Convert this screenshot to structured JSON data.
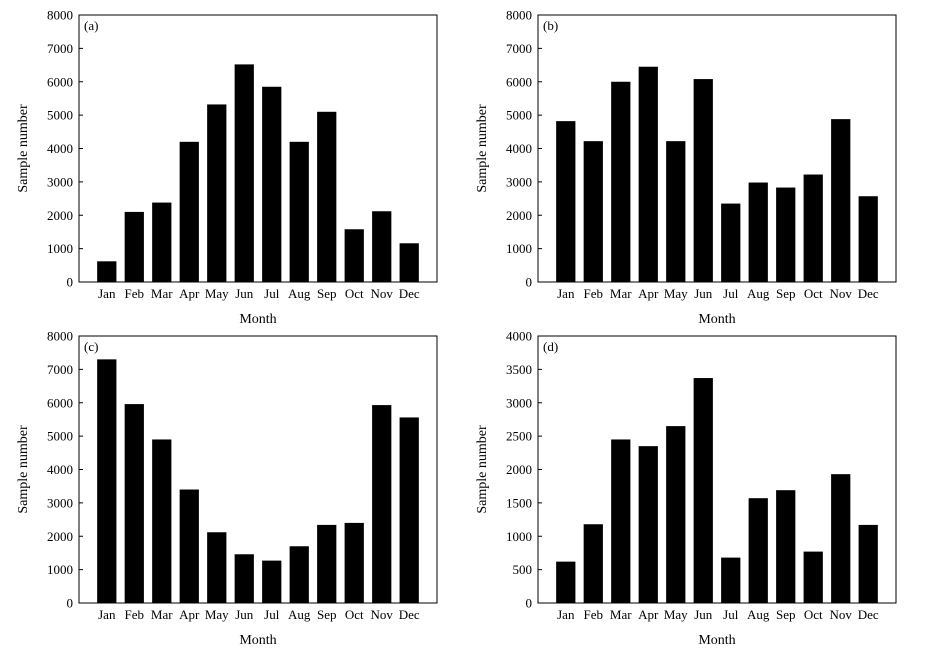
{
  "chart_data": [
    {
      "type": "bar",
      "panel_label": "(a)",
      "xlabel": "Month",
      "ylabel": "Sample number",
      "ylim": [
        0,
        8000
      ],
      "yticks": [
        0,
        1000,
        2000,
        3000,
        4000,
        5000,
        6000,
        7000,
        8000
      ],
      "categories": [
        "Jan",
        "Feb",
        "Mar",
        "Apr",
        "May",
        "Jun",
        "Jul",
        "Aug",
        "Sep",
        "Oct",
        "Nov",
        "Dec"
      ],
      "values": [
        620,
        2100,
        2380,
        4200,
        5320,
        6520,
        5850,
        4200,
        5100,
        1580,
        2120,
        1160
      ],
      "bar_color": "#000000"
    },
    {
      "type": "bar",
      "panel_label": "(b)",
      "xlabel": "Month",
      "ylabel": "Sample number",
      "ylim": [
        0,
        8000
      ],
      "yticks": [
        0,
        1000,
        2000,
        3000,
        4000,
        5000,
        6000,
        7000,
        8000
      ],
      "categories": [
        "Jan",
        "Feb",
        "Mar",
        "Apr",
        "May",
        "Jun",
        "Jul",
        "Aug",
        "Sep",
        "Oct",
        "Nov",
        "Dec"
      ],
      "values": [
        4820,
        4220,
        6000,
        6450,
        4220,
        6080,
        2350,
        2980,
        2830,
        3220,
        4880,
        2570
      ],
      "bar_color": "#000000"
    },
    {
      "type": "bar",
      "panel_label": "(c)",
      "xlabel": "Month",
      "ylabel": "Sample number",
      "ylim": [
        0,
        8000
      ],
      "yticks": [
        0,
        1000,
        2000,
        3000,
        4000,
        5000,
        6000,
        7000,
        8000
      ],
      "categories": [
        "Jan",
        "Feb",
        "Mar",
        "Apr",
        "May",
        "Jun",
        "Jul",
        "Aug",
        "Sep",
        "Oct",
        "Nov",
        "Dec"
      ],
      "values": [
        7300,
        5960,
        4900,
        3400,
        2120,
        1460,
        1270,
        1700,
        2340,
        2400,
        5930,
        5560
      ],
      "bar_color": "#000000"
    },
    {
      "type": "bar",
      "panel_label": "(d)",
      "xlabel": "Month",
      "ylabel": "Sample number",
      "ylim": [
        0,
        4000
      ],
      "yticks": [
        0,
        500,
        1000,
        1500,
        2000,
        2500,
        3000,
        3500,
        4000
      ],
      "categories": [
        "Jan",
        "Feb",
        "Mar",
        "Apr",
        "May",
        "Jun",
        "Jul",
        "Aug",
        "Sep",
        "Oct",
        "Nov",
        "Dec"
      ],
      "values": [
        620,
        1180,
        2450,
        2350,
        2650,
        3370,
        680,
        1570,
        1690,
        770,
        1930,
        1170
      ],
      "bar_color": "#000000"
    }
  ]
}
